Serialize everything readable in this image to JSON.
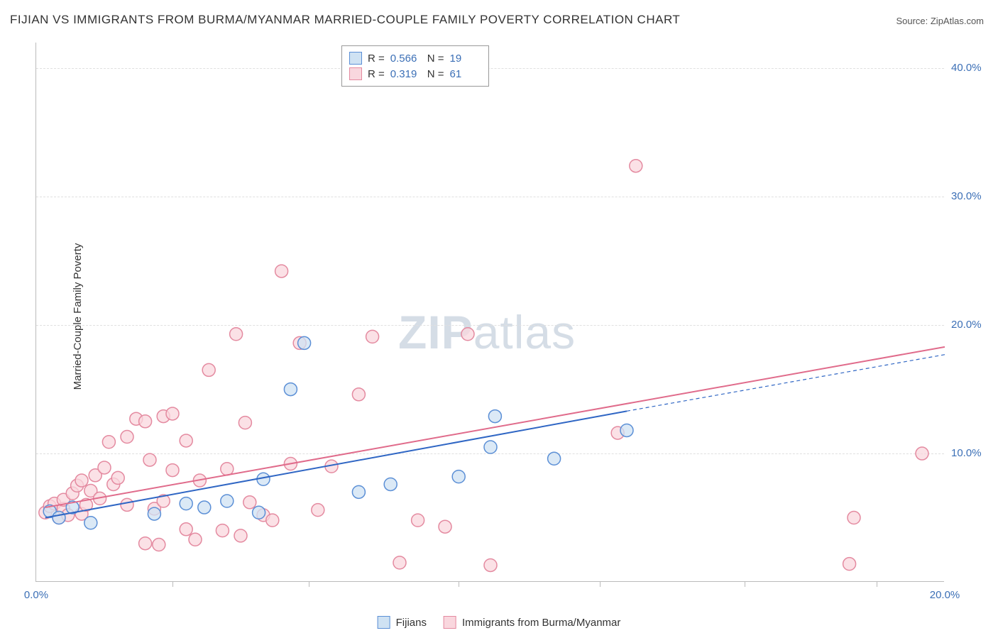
{
  "title": "FIJIAN VS IMMIGRANTS FROM BURMA/MYANMAR MARRIED-COUPLE FAMILY POVERTY CORRELATION CHART",
  "source": "Source: ZipAtlas.com",
  "ylabel": "Married-Couple Family Poverty",
  "watermark": {
    "bold": "ZIP",
    "light": "atlas"
  },
  "chart": {
    "type": "scatter",
    "background_color": "#ffffff",
    "grid_color": "#e0e0e0",
    "axis_color": "#bbbbbb",
    "tick_color": "#3b6fb6",
    "xlim": [
      0,
      20
    ],
    "ylim": [
      0,
      42
    ],
    "xticks": [
      0.0,
      20.0
    ],
    "xtick_minor": [
      3.0,
      6.0,
      9.3,
      12.4,
      15.6,
      18.5
    ],
    "yticks": [
      10.0,
      20.0,
      30.0,
      40.0
    ],
    "xtick_labels": [
      "0.0%",
      "20.0%"
    ],
    "ytick_labels": [
      "10.0%",
      "20.0%",
      "30.0%",
      "40.0%"
    ],
    "marker_radius": 9,
    "marker_stroke_width": 1.5,
    "line_width": 2,
    "series": [
      {
        "id": "fijians",
        "label": "Fijians",
        "fill": "#cfe2f3",
        "stroke": "#5b8fd6",
        "line_color": "#2f66c4",
        "R": "0.566",
        "N": "19",
        "trend": {
          "x1": 0.2,
          "y1": 5.0,
          "x2": 13.0,
          "y2": 13.3,
          "ext_x2": 20.0,
          "ext_y2": 17.7
        },
        "points": [
          [
            0.3,
            5.5
          ],
          [
            0.5,
            5.0
          ],
          [
            0.8,
            5.8
          ],
          [
            1.2,
            4.6
          ],
          [
            2.6,
            5.3
          ],
          [
            3.3,
            6.1
          ],
          [
            3.7,
            5.8
          ],
          [
            4.2,
            6.3
          ],
          [
            4.9,
            5.4
          ],
          [
            5.0,
            8.0
          ],
          [
            5.6,
            15.0
          ],
          [
            5.9,
            18.6
          ],
          [
            7.1,
            7.0
          ],
          [
            7.8,
            7.6
          ],
          [
            9.3,
            8.2
          ],
          [
            10.1,
            12.9
          ],
          [
            10.0,
            10.5
          ],
          [
            11.4,
            9.6
          ],
          [
            13.0,
            11.8
          ]
        ]
      },
      {
        "id": "immigrants",
        "label": "Immigrants from Burma/Myanmar",
        "fill": "#f9d7de",
        "stroke": "#e48aa0",
        "line_color": "#e06b8b",
        "R": "0.319",
        "N": "61",
        "trend": {
          "x1": 0.2,
          "y1": 5.8,
          "x2": 20.0,
          "y2": 18.3,
          "ext_x2": 20.0,
          "ext_y2": 18.3
        },
        "points": [
          [
            0.2,
            5.4
          ],
          [
            0.3,
            5.9
          ],
          [
            0.4,
            6.1
          ],
          [
            0.5,
            5.0
          ],
          [
            0.6,
            5.7
          ],
          [
            0.6,
            6.4
          ],
          [
            0.7,
            5.2
          ],
          [
            0.8,
            6.9
          ],
          [
            0.9,
            7.5
          ],
          [
            1.0,
            5.3
          ],
          [
            1.0,
            7.9
          ],
          [
            1.1,
            6.0
          ],
          [
            1.2,
            7.1
          ],
          [
            1.3,
            8.3
          ],
          [
            1.4,
            6.5
          ],
          [
            1.5,
            8.9
          ],
          [
            1.6,
            10.9
          ],
          [
            1.7,
            7.6
          ],
          [
            1.8,
            8.1
          ],
          [
            2.0,
            6.0
          ],
          [
            2.0,
            11.3
          ],
          [
            2.2,
            12.7
          ],
          [
            2.4,
            3.0
          ],
          [
            2.4,
            12.5
          ],
          [
            2.5,
            9.5
          ],
          [
            2.6,
            5.7
          ],
          [
            2.7,
            2.9
          ],
          [
            2.8,
            6.3
          ],
          [
            2.8,
            12.9
          ],
          [
            3.0,
            8.7
          ],
          [
            3.0,
            13.1
          ],
          [
            3.3,
            4.1
          ],
          [
            3.3,
            11.0
          ],
          [
            3.5,
            3.3
          ],
          [
            3.6,
            7.9
          ],
          [
            3.8,
            16.5
          ],
          [
            4.1,
            4.0
          ],
          [
            4.2,
            8.8
          ],
          [
            4.4,
            19.3
          ],
          [
            4.5,
            3.6
          ],
          [
            4.6,
            12.4
          ],
          [
            4.7,
            6.2
          ],
          [
            5.0,
            5.2
          ],
          [
            5.2,
            4.8
          ],
          [
            5.4,
            24.2
          ],
          [
            5.6,
            9.2
          ],
          [
            5.8,
            18.6
          ],
          [
            6.2,
            5.6
          ],
          [
            6.5,
            9.0
          ],
          [
            7.1,
            14.6
          ],
          [
            7.4,
            19.1
          ],
          [
            8.0,
            1.5
          ],
          [
            8.4,
            4.8
          ],
          [
            9.0,
            4.3
          ],
          [
            9.5,
            19.3
          ],
          [
            10.0,
            1.3
          ],
          [
            12.8,
            11.6
          ],
          [
            13.2,
            32.4
          ],
          [
            17.9,
            1.4
          ],
          [
            18.0,
            5.0
          ],
          [
            19.5,
            10.0
          ]
        ]
      }
    ]
  },
  "stats_box": {
    "R_label": "R =",
    "N_label": "N ="
  },
  "swatch_border": {
    "fijians": "#5b8fd6",
    "immigrants": "#e48aa0"
  },
  "swatch_fill": {
    "fijians": "#cfe2f3",
    "immigrants": "#f9d7de"
  }
}
